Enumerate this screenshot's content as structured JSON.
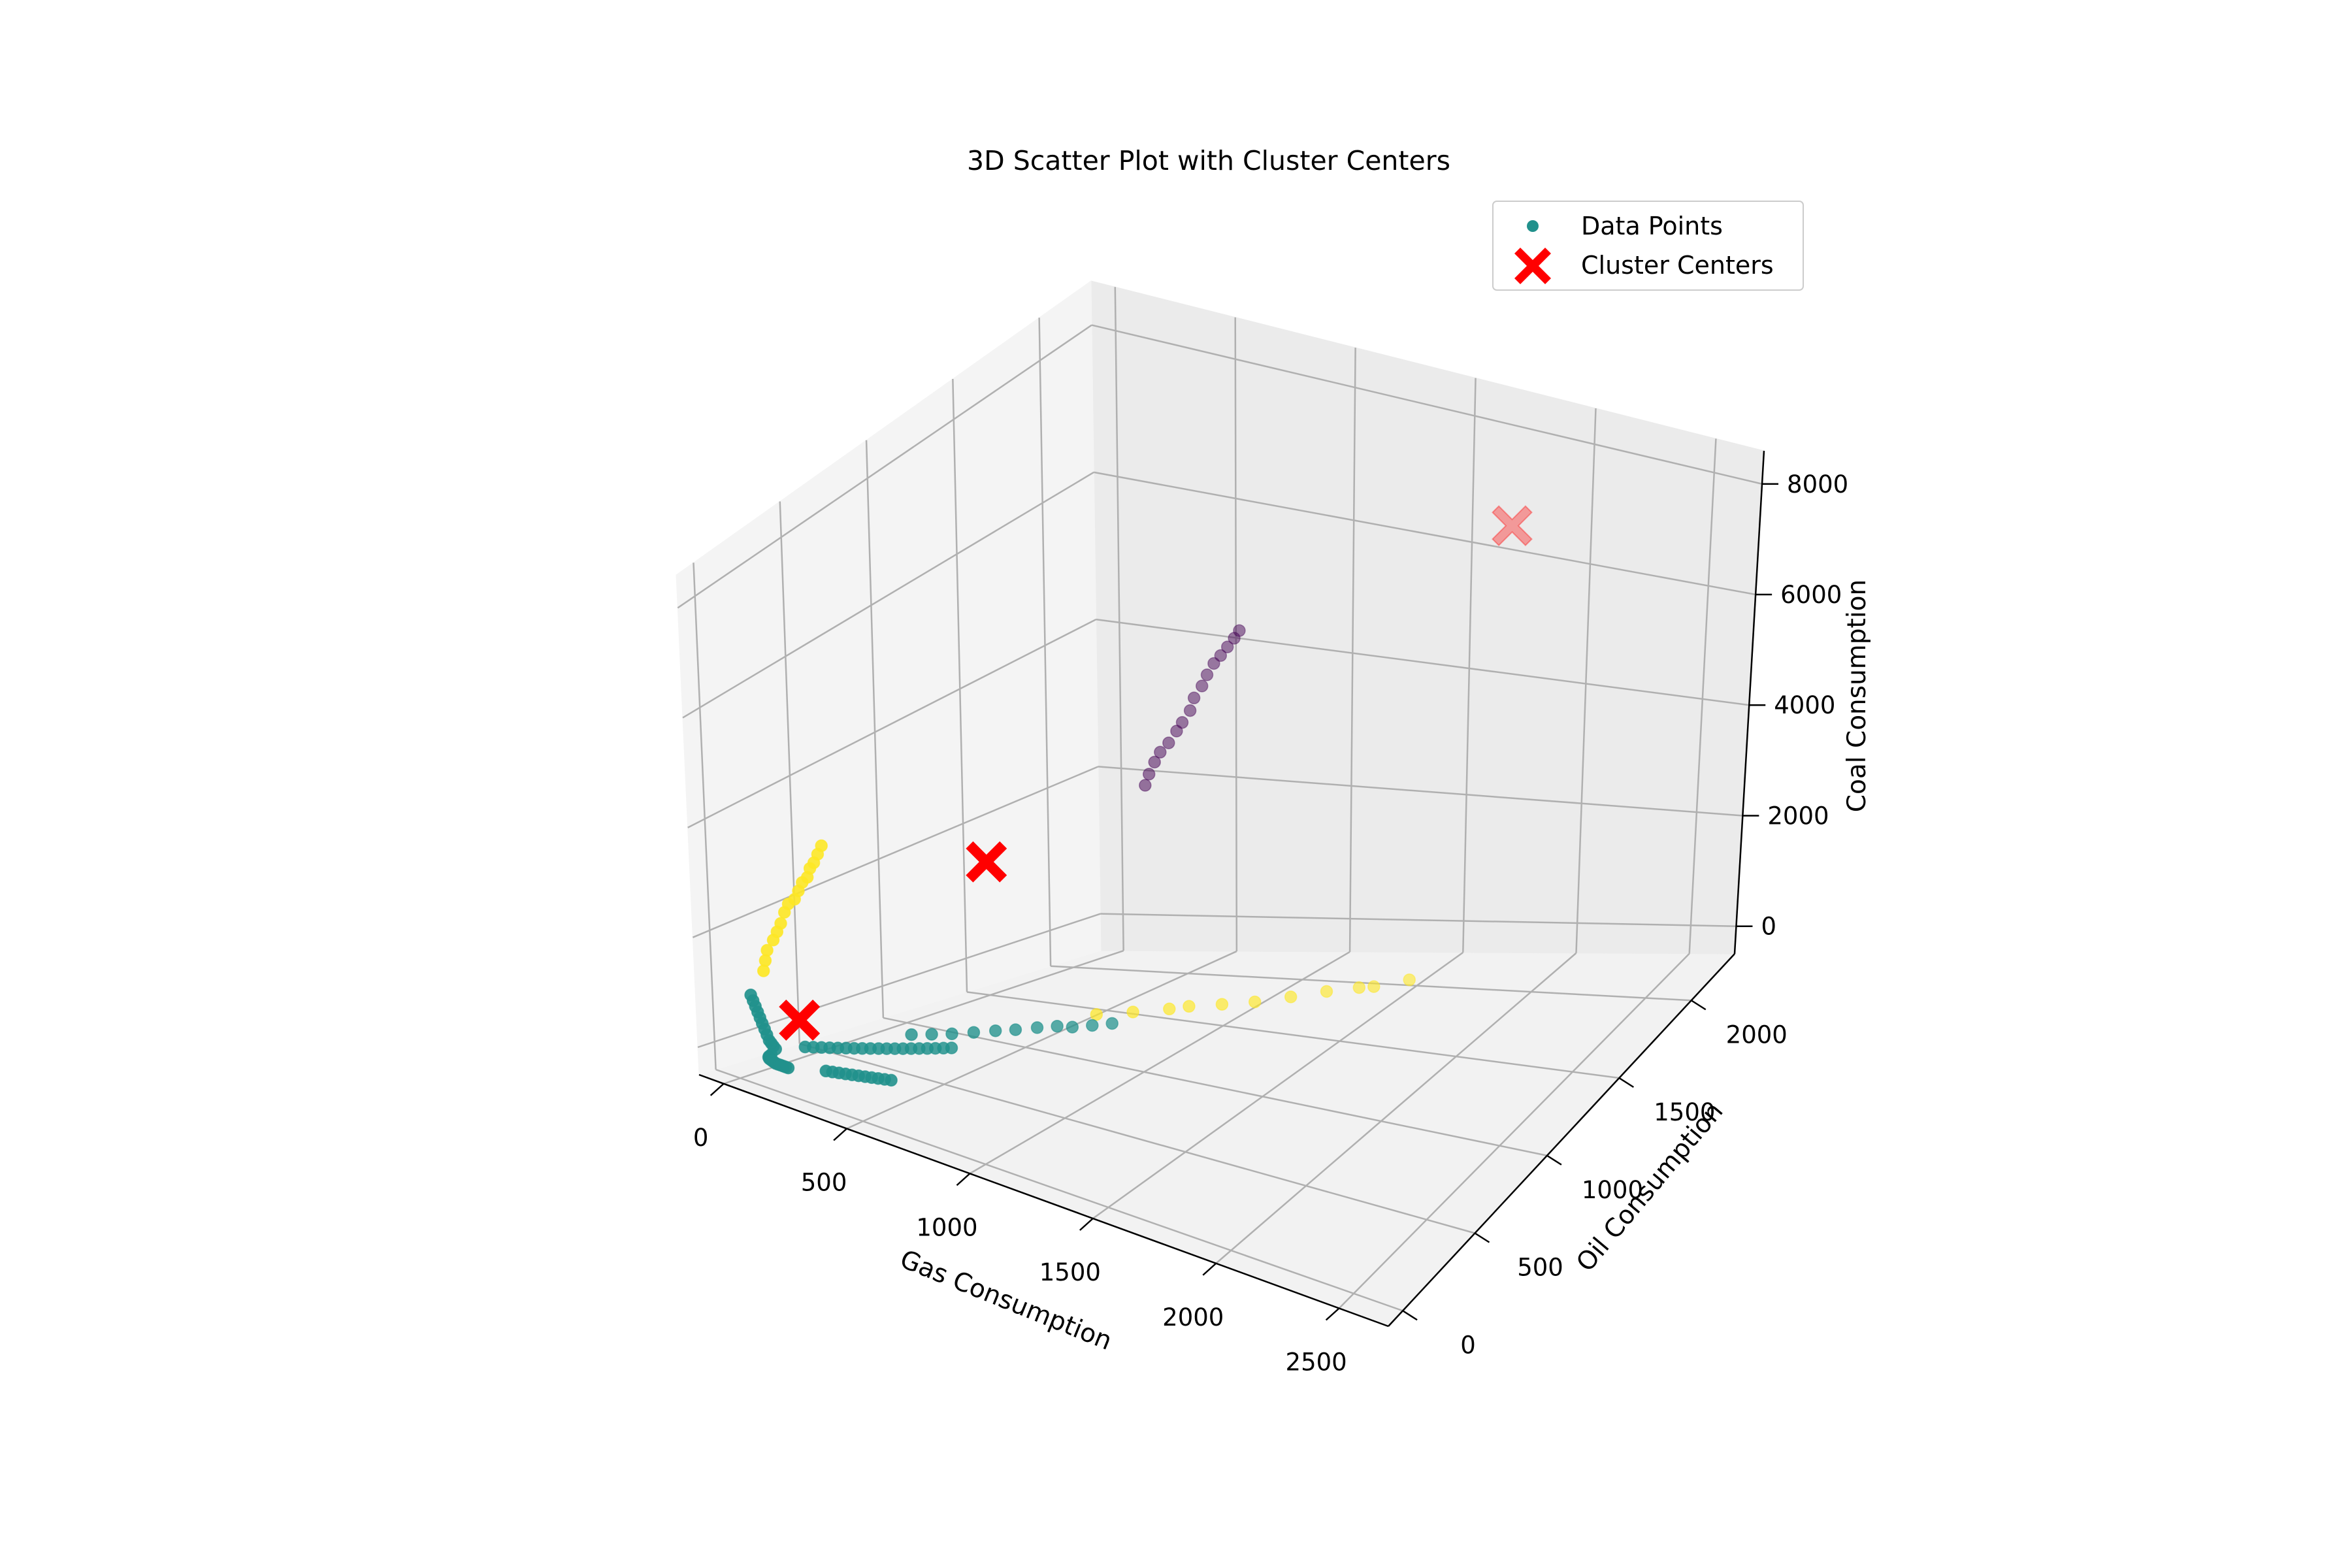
{
  "chart_data": {
    "type": "scatter",
    "projection": "3d",
    "title": "3D Scatter Plot with Cluster Centers",
    "xlabel": "Gas Consumption",
    "ylabel": "Oil Consumption",
    "zlabel": "Coal Consumption",
    "xlim": [
      -100,
      2700
    ],
    "ylim": [
      -100,
      2300
    ],
    "zlim": [
      -500,
      8600
    ],
    "x_ticks": [
      0,
      500,
      1000,
      1500,
      2000,
      2500
    ],
    "y_ticks": [
      0,
      500,
      1000,
      1500,
      2000
    ],
    "z_ticks": [
      0,
      2000,
      4000,
      6000,
      8000
    ],
    "grid": true,
    "legend": {
      "position": "top-right",
      "entries": [
        "Data Points",
        "Cluster Centers"
      ]
    },
    "cluster_colors": [
      "#440154",
      "#21918c",
      "#fde725"
    ],
    "center_color": "#ff0000",
    "series": [
      {
        "name": "Data Points",
        "color_by": "cluster",
        "points": [
          [
            220,
            2140,
            2000,
            0
          ],
          [
            230,
            2150,
            2150,
            0
          ],
          [
            240,
            2170,
            2300,
            0
          ],
          [
            250,
            2190,
            2420,
            0
          ],
          [
            280,
            2200,
            2550,
            0
          ],
          [
            300,
            2220,
            2700,
            0
          ],
          [
            310,
            2240,
            2800,
            0
          ],
          [
            330,
            2260,
            2950,
            0
          ],
          [
            340,
            2270,
            3120,
            0
          ],
          [
            360,
            2290,
            3270,
            0
          ],
          [
            375,
            2300,
            3420,
            0
          ],
          [
            390,
            2320,
            3560,
            0
          ],
          [
            405,
            2340,
            3650,
            0
          ],
          [
            420,
            2360,
            3750,
            0
          ],
          [
            435,
            2380,
            3850,
            0
          ],
          [
            450,
            2390,
            3950,
            0
          ],
          [
            80,
            50,
            1500,
            2
          ],
          [
            75,
            70,
            1650,
            2
          ],
          [
            70,
            90,
            1800,
            2
          ],
          [
            90,
            100,
            2000,
            2
          ],
          [
            100,
            110,
            2150,
            2
          ],
          [
            110,
            120,
            2300,
            2
          ],
          [
            120,
            130,
            2500,
            2
          ],
          [
            130,
            140,
            2650,
            2
          ],
          [
            150,
            150,
            2750,
            2
          ],
          [
            160,
            160,
            2900,
            2
          ],
          [
            170,
            170,
            3050,
            2
          ],
          [
            185,
            180,
            3150,
            2
          ],
          [
            190,
            190,
            3300,
            2
          ],
          [
            200,
            200,
            3400,
            2
          ],
          [
            210,
            210,
            3550,
            2
          ],
          [
            220,
            220,
            3700,
            2
          ],
          [
            700,
            1150,
            0,
            2
          ],
          [
            800,
            1230,
            0,
            2
          ],
          [
            900,
            1310,
            0,
            2
          ],
          [
            950,
            1360,
            0,
            2
          ],
          [
            1050,
            1420,
            0,
            2
          ],
          [
            1150,
            1480,
            0,
            2
          ],
          [
            1250,
            1560,
            0,
            2
          ],
          [
            1350,
            1640,
            0,
            2
          ],
          [
            1450,
            1700,
            0,
            2
          ],
          [
            1500,
            1720,
            0,
            2
          ],
          [
            1600,
            1800,
            0,
            2
          ],
          [
            300,
            600,
            0,
            1
          ],
          [
            350,
            650,
            0,
            1
          ],
          [
            400,
            700,
            0,
            1
          ],
          [
            450,
            760,
            0,
            1
          ],
          [
            500,
            820,
            0,
            1
          ],
          [
            550,
            870,
            0,
            1
          ],
          [
            600,
            930,
            0,
            1
          ],
          [
            650,
            980,
            0,
            1
          ],
          [
            700,
            1000,
            0,
            1
          ],
          [
            750,
            1050,
            0,
            1
          ],
          [
            800,
            1100,
            0,
            1
          ],
          [
            30,
            40,
            1000,
            1
          ],
          [
            35,
            45,
            900,
            1
          ],
          [
            40,
            50,
            800,
            1
          ],
          [
            45,
            55,
            700,
            1
          ],
          [
            50,
            60,
            600,
            1
          ],
          [
            55,
            65,
            500,
            1
          ],
          [
            60,
            70,
            400,
            1
          ],
          [
            65,
            75,
            300,
            1
          ],
          [
            70,
            80,
            200,
            1
          ],
          [
            75,
            85,
            150,
            1
          ],
          [
            80,
            90,
            100,
            1
          ],
          [
            85,
            95,
            50,
            1
          ],
          [
            90,
            60,
            0,
            1
          ],
          [
            95,
            40,
            0,
            1
          ],
          [
            100,
            30,
            0,
            1
          ],
          [
            110,
            20,
            0,
            1
          ],
          [
            120,
            15,
            0,
            1
          ],
          [
            130,
            10,
            0,
            1
          ],
          [
            140,
            5,
            0,
            1
          ],
          [
            150,
            0,
            0,
            1
          ],
          [
            160,
            0,
            0,
            1
          ],
          [
            170,
            0,
            0,
            1
          ],
          [
            180,
            0,
            0,
            1
          ],
          [
            190,
            0,
            0,
            1
          ],
          [
            200,
            0,
            0,
            1
          ],
          [
            120,
            220,
            0,
            1
          ],
          [
            140,
            240,
            0,
            1
          ],
          [
            160,
            260,
            0,
            1
          ],
          [
            180,
            280,
            0,
            1
          ],
          [
            200,
            300,
            0,
            1
          ],
          [
            220,
            320,
            0,
            1
          ],
          [
            240,
            340,
            0,
            1
          ],
          [
            260,
            360,
            0,
            1
          ],
          [
            280,
            380,
            0,
            1
          ],
          [
            300,
            400,
            0,
            1
          ],
          [
            320,
            420,
            0,
            1
          ],
          [
            340,
            440,
            0,
            1
          ],
          [
            360,
            460,
            0,
            1
          ],
          [
            380,
            480,
            0,
            1
          ],
          [
            400,
            500,
            0,
            1
          ],
          [
            420,
            520,
            0,
            1
          ],
          [
            440,
            540,
            0,
            1
          ],
          [
            460,
            560,
            0,
            1
          ],
          [
            480,
            580,
            0,
            1
          ],
          [
            300,
            80,
            0,
            1
          ],
          [
            320,
            90,
            0,
            1
          ],
          [
            340,
            100,
            0,
            1
          ],
          [
            360,
            110,
            0,
            1
          ],
          [
            380,
            120,
            0,
            1
          ],
          [
            400,
            130,
            0,
            1
          ],
          [
            420,
            140,
            0,
            1
          ],
          [
            440,
            150,
            0,
            1
          ],
          [
            460,
            160,
            0,
            1
          ],
          [
            480,
            170,
            0,
            1
          ],
          [
            500,
            180,
            0,
            1
          ]
        ]
      },
      {
        "name": "Cluster Centers",
        "marker": "X",
        "points": [
          [
            2000,
            1800,
            8000
          ],
          [
            550,
            720,
            3050
          ],
          [
            150,
            150,
            600
          ]
        ]
      }
    ]
  }
}
